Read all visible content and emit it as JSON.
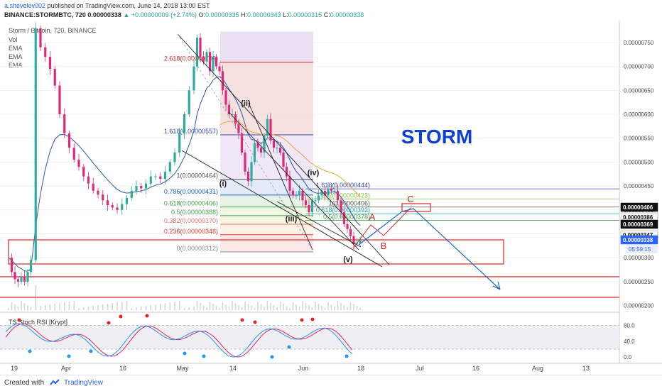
{
  "header": {
    "user": "a.shevelev002",
    "published_text": "published on TradingView.com, June 14, 2018 13:00 EST",
    "symbol": "BINANCE:STORMBTC, 720",
    "last": "0.00000338",
    "change": "▲ +0.00000009 (+2.74%)",
    "o_label": "O:",
    "o": "0.00000335",
    "h_label": "H:",
    "h": "0.00000343",
    "l_label": "L:",
    "l": "0.00000315",
    "c_label": "C:",
    "c": "0.00000338"
  },
  "legend": {
    "title": "Storm / Bitcoin, 720, BINANCE",
    "items": [
      "Vol",
      "EMA",
      "EMA",
      "EMA"
    ]
  },
  "overlay_title": "STORM",
  "footer": {
    "created_with": "Created with",
    "brand": "TradingView"
  },
  "colors": {
    "candle_bull": "#2eaaa0",
    "candle_bear": "#e0287a",
    "ema_blue": "#2b55b8",
    "ema_orange": "#f0a531",
    "fib": "#9c27b0",
    "title": "#0d3fd4",
    "arrow": "#1e6ac9",
    "box": "#e02424",
    "stoch_k": "#2196f3",
    "stoch_d": "#e91e63"
  },
  "chart_data": {
    "type": "candlestick",
    "y_axis": {
      "ticks": [
        "0.00000750",
        "0.00000700",
        "0.00000650",
        "0.00000600",
        "0.00000550",
        "0.00000500",
        "0.00000450",
        "0.00000400",
        "0.00000350",
        "0.00000300",
        "0.00000250",
        "0.00000200"
      ],
      "highlighted": [
        {
          "value": 406,
          "label": "0.00000406",
          "style": "dark"
        },
        {
          "value": 386,
          "label": "0.00000386",
          "style": "light"
        },
        {
          "value": 369,
          "label": "0.00000369",
          "style": "dark"
        },
        {
          "value": 347,
          "label": "0.00000347",
          "style": "light"
        },
        {
          "value": 338,
          "label": "0.00000338",
          "style": "blue"
        }
      ],
      "countdown": "05:59:15"
    },
    "x_axis": {
      "ticks": [
        "19",
        "Apr",
        "16",
        "May",
        "14",
        "Jun",
        "18",
        "Jul",
        "16",
        "Aug",
        "13"
      ]
    },
    "price_series": [
      [
        0,
        300
      ],
      [
        2,
        270
      ],
      [
        4,
        255
      ],
      [
        6,
        250
      ],
      [
        8,
        260
      ],
      [
        10,
        250
      ],
      [
        12,
        270
      ],
      [
        14,
        295
      ],
      [
        17,
        780
      ],
      [
        20,
        740
      ],
      [
        23,
        720
      ],
      [
        26,
        695
      ],
      [
        29,
        660
      ],
      [
        32,
        600
      ],
      [
        35,
        560
      ],
      [
        38,
        530
      ],
      [
        41,
        505
      ],
      [
        44,
        490
      ],
      [
        47,
        470
      ],
      [
        50,
        455
      ],
      [
        53,
        440
      ],
      [
        56,
        432
      ],
      [
        59,
        420
      ],
      [
        62,
        410
      ],
      [
        65,
        405
      ],
      [
        68,
        400
      ],
      [
        71,
        412
      ],
      [
        74,
        425
      ],
      [
        77,
        440
      ],
      [
        80,
        450
      ],
      [
        83,
        445
      ],
      [
        86,
        455
      ],
      [
        89,
        470
      ],
      [
        92,
        470
      ],
      [
        95,
        465
      ],
      [
        98,
        480
      ],
      [
        101,
        500
      ],
      [
        104,
        520
      ],
      [
        107,
        560
      ],
      [
        110,
        600
      ],
      [
        113,
        650
      ],
      [
        116,
        700
      ],
      [
        118,
        760
      ],
      [
        120,
        720
      ],
      [
        122,
        710
      ],
      [
        124,
        730
      ],
      [
        126,
        690
      ],
      [
        128,
        720
      ],
      [
        130,
        700
      ],
      [
        132,
        690
      ],
      [
        134,
        650
      ],
      [
        136,
        620
      ],
      [
        138,
        600
      ],
      [
        140,
        600
      ],
      [
        142,
        580
      ],
      [
        144,
        560
      ],
      [
        146,
        520
      ],
      [
        148,
        480
      ],
      [
        150,
        460
      ],
      [
        152,
        500
      ],
      [
        154,
        540
      ],
      [
        156,
        530
      ],
      [
        158,
        520
      ],
      [
        160,
        555
      ],
      [
        162,
        590
      ],
      [
        164,
        545
      ],
      [
        166,
        530
      ],
      [
        168,
        530
      ],
      [
        170,
        520
      ],
      [
        172,
        490
      ],
      [
        174,
        470
      ],
      [
        176,
        440
      ],
      [
        178,
        430
      ],
      [
        180,
        430
      ],
      [
        182,
        440
      ],
      [
        184,
        420
      ],
      [
        186,
        410
      ],
      [
        188,
        395
      ],
      [
        190,
        420
      ],
      [
        192,
        420
      ],
      [
        194,
        430
      ],
      [
        196,
        440
      ],
      [
        198,
        430
      ],
      [
        200,
        445
      ],
      [
        202,
        440
      ],
      [
        204,
        440
      ],
      [
        206,
        420
      ],
      [
        208,
        395
      ],
      [
        210,
        370
      ],
      [
        212,
        360
      ],
      [
        214,
        345
      ],
      [
        216,
        328
      ],
      [
        218,
        330
      ],
      [
        220,
        338
      ]
    ],
    "annotations": {
      "fib_levels": [
        {
          "label": "0(0.00000312)",
          "value": 312
        },
        {
          "label": "0.236(0.00000348)",
          "value": 348
        },
        {
          "label": "0.382(0.00000370)",
          "value": 370
        },
        {
          "label": "0.5(0.00000388)",
          "value": 388
        },
        {
          "label": "0.618(0.00000406)",
          "value": 406
        },
        {
          "label": "0.786(0.00000431)",
          "value": 431
        },
        {
          "label": "1(0.00000464)",
          "value": 464
        },
        {
          "label": "1.618(0.00000557)",
          "value": 557
        },
        {
          "label": "2.618(0.00000709)",
          "value": 709
        }
      ],
      "ext_levels": [
        {
          "label": "1.618(0.00000444)",
          "value": 444
        },
        {
          "label": "1.272(0.00000423)",
          "value": 423
        },
        {
          "label": "1(0.00000406)",
          "value": 406
        },
        {
          "label": "0.618(0.00000392)",
          "value": 392
        },
        {
          "label": "0.5(0.00000378)",
          "value": 378
        }
      ],
      "wave_labels": [
        "(i)",
        "(ii)",
        "(iii)",
        "(iv)",
        "(v)"
      ],
      "abc_labels": [
        "A",
        "B",
        "C"
      ]
    },
    "indicator": {
      "name": "TS Stoch RSI [Krypt]",
      "ticks": [
        "80.0",
        "40.0",
        "0.0"
      ],
      "ylim": [
        -5,
        100
      ]
    }
  }
}
